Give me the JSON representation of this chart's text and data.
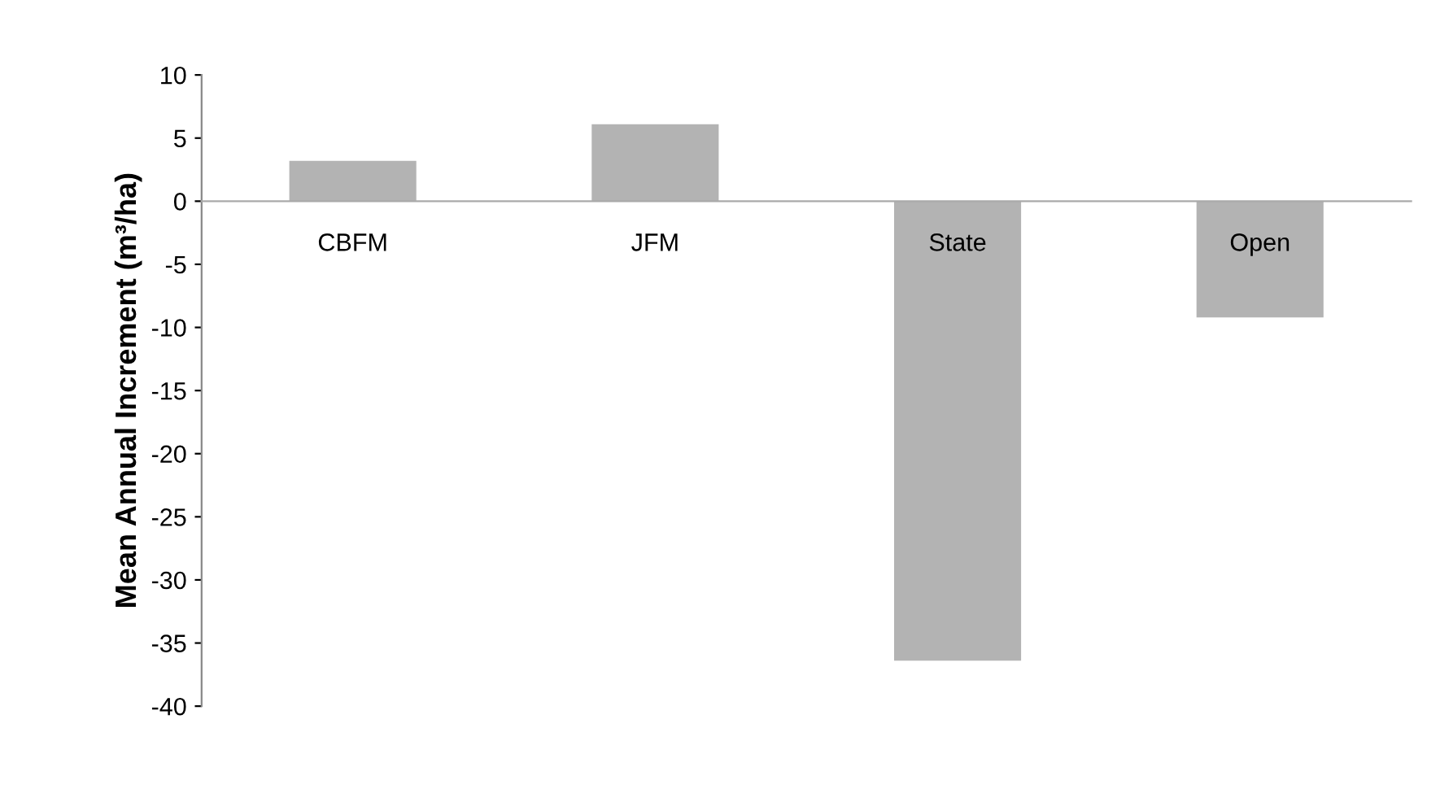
{
  "chart_data": {
    "type": "bar",
    "ylabel": "Mean Annual Increment (m³/ha)",
    "categories": [
      "CBFM",
      "JFM",
      "State",
      "Open"
    ],
    "values": [
      3.2,
      6.1,
      -36.4,
      -9.2
    ],
    "color": "#b3b3b3",
    "ylim": [
      -40,
      10
    ],
    "yticks": [
      -40,
      -35,
      -30,
      -25,
      -20,
      -15,
      -10,
      -5,
      0,
      5,
      10
    ],
    "grid": false,
    "legend": false
  }
}
